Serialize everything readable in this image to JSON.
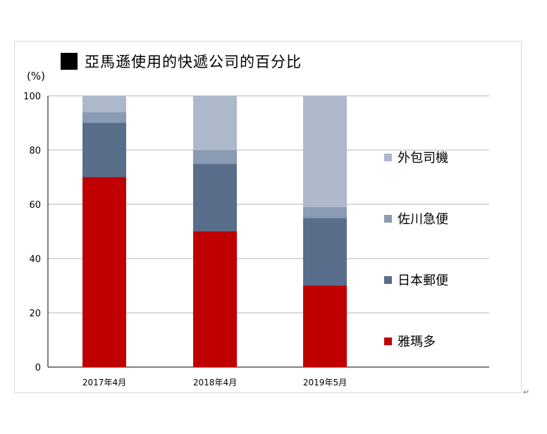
{
  "chart_data": {
    "type": "stacked-bar",
    "title": "亞馬遜使用的快遞公司的百分比",
    "unit_label": "(%)",
    "categories": [
      "2017年4月",
      "2018年4月",
      "2019年5月"
    ],
    "ylim": [
      0,
      100
    ],
    "yticks": [
      "0",
      "20",
      "40",
      "60",
      "80",
      "100"
    ],
    "grid": true,
    "legend_position": "right",
    "series": [
      {
        "name": "雅瑪多",
        "color": "#c00000",
        "values": [
          70,
          50,
          30
        ]
      },
      {
        "name": "日本郵便",
        "color": "#596e8a",
        "values": [
          20,
          25,
          25
        ]
      },
      {
        "name": "佐川急便",
        "color": "#8a9bb3",
        "values": [
          4,
          5,
          4
        ]
      },
      {
        "name": "外包司機",
        "color": "#adb9ca",
        "values": [
          6,
          20,
          41
        ]
      }
    ]
  },
  "footer_mark": "↵"
}
